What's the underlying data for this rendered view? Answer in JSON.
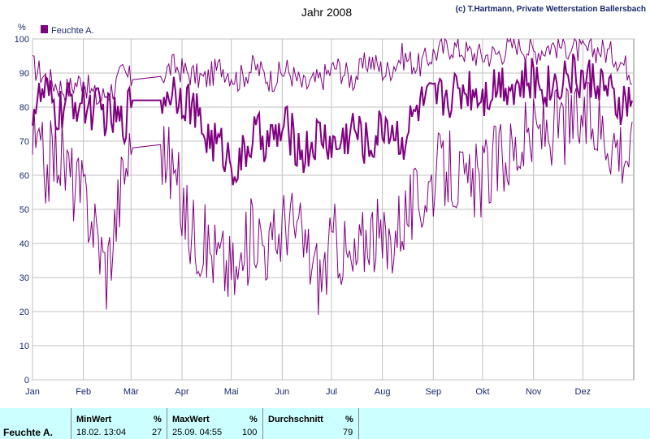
{
  "chart_data": {
    "type": "line",
    "title": "Jahr 2008",
    "ylabel": "%",
    "xlabel": "",
    "ylim": [
      0,
      100
    ],
    "yticks": [
      0,
      10,
      20,
      30,
      40,
      50,
      60,
      70,
      80,
      90,
      100
    ],
    "months": [
      "Jan",
      "Feb",
      "Mär",
      "Apr",
      "Mai",
      "Jun",
      "Jul",
      "Aug",
      "Sep",
      "Okt",
      "Nov",
      "Dez"
    ],
    "legend": "Feuchte A.",
    "grid": true,
    "gap": [
      "03-01",
      "03-20"
    ],
    "series": [
      {
        "name": "Feuchte A.",
        "role": "max",
        "values": [
          [
            0,
            92
          ],
          [
            10,
            88
          ],
          [
            20,
            85
          ],
          [
            30,
            88
          ],
          [
            40,
            82
          ],
          [
            50,
            86
          ],
          [
            55,
            90
          ],
          [
            60,
            88
          ],
          [
            78,
            89
          ],
          [
            85,
            92
          ],
          [
            95,
            90
          ],
          [
            105,
            88
          ],
          [
            115,
            92
          ],
          [
            125,
            88
          ],
          [
            135,
            92
          ],
          [
            145,
            88
          ],
          [
            155,
            91
          ],
          [
            165,
            86
          ],
          [
            175,
            88
          ],
          [
            185,
            92
          ],
          [
            195,
            88
          ],
          [
            205,
            94
          ],
          [
            215,
            90
          ],
          [
            225,
            95
          ],
          [
            235,
            92
          ],
          [
            245,
            96
          ],
          [
            255,
            98
          ],
          [
            265,
            96
          ],
          [
            275,
            95
          ],
          [
            285,
            96
          ],
          [
            295,
            99
          ],
          [
            305,
            96
          ],
          [
            315,
            98
          ],
          [
            325,
            98
          ],
          [
            335,
            96
          ],
          [
            345,
            97
          ],
          [
            355,
            95
          ],
          [
            365,
            90
          ]
        ]
      },
      {
        "role": "mean",
        "values": [
          [
            0,
            80
          ],
          [
            8,
            84
          ],
          [
            15,
            78
          ],
          [
            25,
            82
          ],
          [
            35,
            80
          ],
          [
            45,
            78
          ],
          [
            55,
            75
          ],
          [
            60,
            82
          ],
          [
            78,
            82
          ],
          [
            85,
            86
          ],
          [
            95,
            82
          ],
          [
            105,
            72
          ],
          [
            115,
            68
          ],
          [
            125,
            62
          ],
          [
            135,
            72
          ],
          [
            145,
            70
          ],
          [
            155,
            74
          ],
          [
            165,
            66
          ],
          [
            175,
            72
          ],
          [
            185,
            68
          ],
          [
            195,
            74
          ],
          [
            205,
            68
          ],
          [
            215,
            76
          ],
          [
            225,
            70
          ],
          [
            235,
            80
          ],
          [
            245,
            82
          ],
          [
            255,
            84
          ],
          [
            265,
            86
          ],
          [
            275,
            84
          ],
          [
            285,
            88
          ],
          [
            295,
            86
          ],
          [
            305,
            88
          ],
          [
            315,
            86
          ],
          [
            325,
            90
          ],
          [
            335,
            88
          ],
          [
            345,
            88
          ],
          [
            355,
            80
          ],
          [
            365,
            82
          ]
        ]
      },
      {
        "role": "min",
        "values": [
          [
            0,
            70
          ],
          [
            8,
            62
          ],
          [
            15,
            68
          ],
          [
            25,
            58
          ],
          [
            35,
            50
          ],
          [
            45,
            32
          ],
          [
            50,
            45
          ],
          [
            55,
            60
          ],
          [
            60,
            68
          ],
          [
            78,
            69
          ],
          [
            85,
            62
          ],
          [
            95,
            45
          ],
          [
            105,
            40
          ],
          [
            115,
            35
          ],
          [
            125,
            30
          ],
          [
            135,
            45
          ],
          [
            145,
            38
          ],
          [
            155,
            48
          ],
          [
            165,
            40
          ],
          [
            175,
            30
          ],
          [
            185,
            42
          ],
          [
            195,
            32
          ],
          [
            205,
            45
          ],
          [
            215,
            38
          ],
          [
            225,
            48
          ],
          [
            235,
            52
          ],
          [
            245,
            60
          ],
          [
            255,
            62
          ],
          [
            265,
            55
          ],
          [
            275,
            60
          ],
          [
            285,
            65
          ],
          [
            295,
            68
          ],
          [
            305,
            72
          ],
          [
            315,
            74
          ],
          [
            325,
            75
          ],
          [
            335,
            76
          ],
          [
            345,
            75
          ],
          [
            355,
            70
          ],
          [
            365,
            66
          ]
        ]
      }
    ]
  },
  "copyright": "(c) T.Hartmann, Private Wetterstation Ballersbach",
  "colors": {
    "line": "#800080",
    "text": "#1a2a6c",
    "panel": "#ccffff",
    "grid": "#c0c0c0"
  },
  "stats": {
    "row_label": "Feuchte A.",
    "min_header": "MinWert",
    "min_unit": "%",
    "min_time": "18.02.  13:04",
    "min_value": "27",
    "max_header": "MaxWert",
    "max_unit": "%",
    "max_time": "25.09.  04:55",
    "max_value": "100",
    "avg_header": "Durchschnitt",
    "avg_unit": "%",
    "avg_value": "79"
  }
}
